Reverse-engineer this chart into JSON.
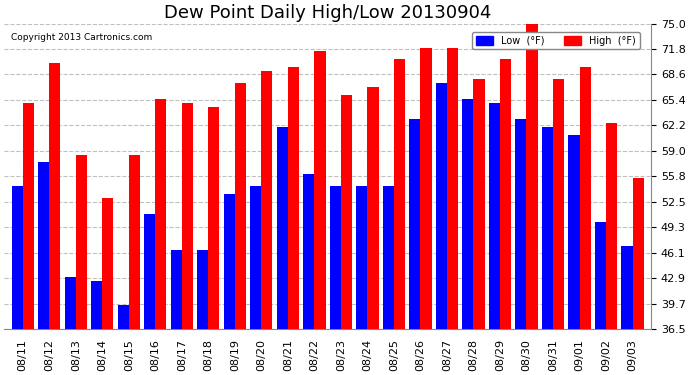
{
  "title": "Dew Point Daily High/Low 20130904",
  "copyright": "Copyright 2013 Cartronics.com",
  "legend_low": "Low  (°F)",
  "legend_high": "High  (°F)",
  "dates": [
    "08/11",
    "08/12",
    "08/13",
    "08/14",
    "08/15",
    "08/16",
    "08/17",
    "08/18",
    "08/19",
    "08/20",
    "08/21",
    "08/22",
    "08/23",
    "08/24",
    "08/25",
    "08/26",
    "08/27",
    "08/28",
    "08/29",
    "08/30",
    "08/31",
    "09/01",
    "09/02",
    "09/03"
  ],
  "low_values": [
    54.5,
    57.5,
    43.0,
    42.5,
    39.5,
    51.0,
    46.5,
    46.5,
    53.5,
    54.5,
    62.0,
    56.0,
    54.5,
    54.5,
    54.5,
    63.0,
    67.5,
    65.5,
    65.0,
    63.0,
    62.0,
    61.0,
    50.0,
    47.0
  ],
  "high_values": [
    65.0,
    70.0,
    58.5,
    53.0,
    58.5,
    65.5,
    65.0,
    64.5,
    67.5,
    69.0,
    69.5,
    71.5,
    66.0,
    67.0,
    70.5,
    72.0,
    72.0,
    68.0,
    70.5,
    75.0,
    68.0,
    69.5,
    62.5,
    55.5
  ],
  "low_color": "#0000ff",
  "high_color": "#ff0000",
  "background_color": "#ffffff",
  "grid_color": "#c0c0c0",
  "ymin": 36.5,
  "ymax": 75.0,
  "yticks": [
    36.5,
    39.7,
    42.9,
    46.1,
    49.3,
    52.5,
    55.8,
    59.0,
    62.2,
    65.4,
    68.6,
    71.8,
    75.0
  ],
  "title_fontsize": 13,
  "tick_fontsize": 8,
  "bar_width": 0.42
}
